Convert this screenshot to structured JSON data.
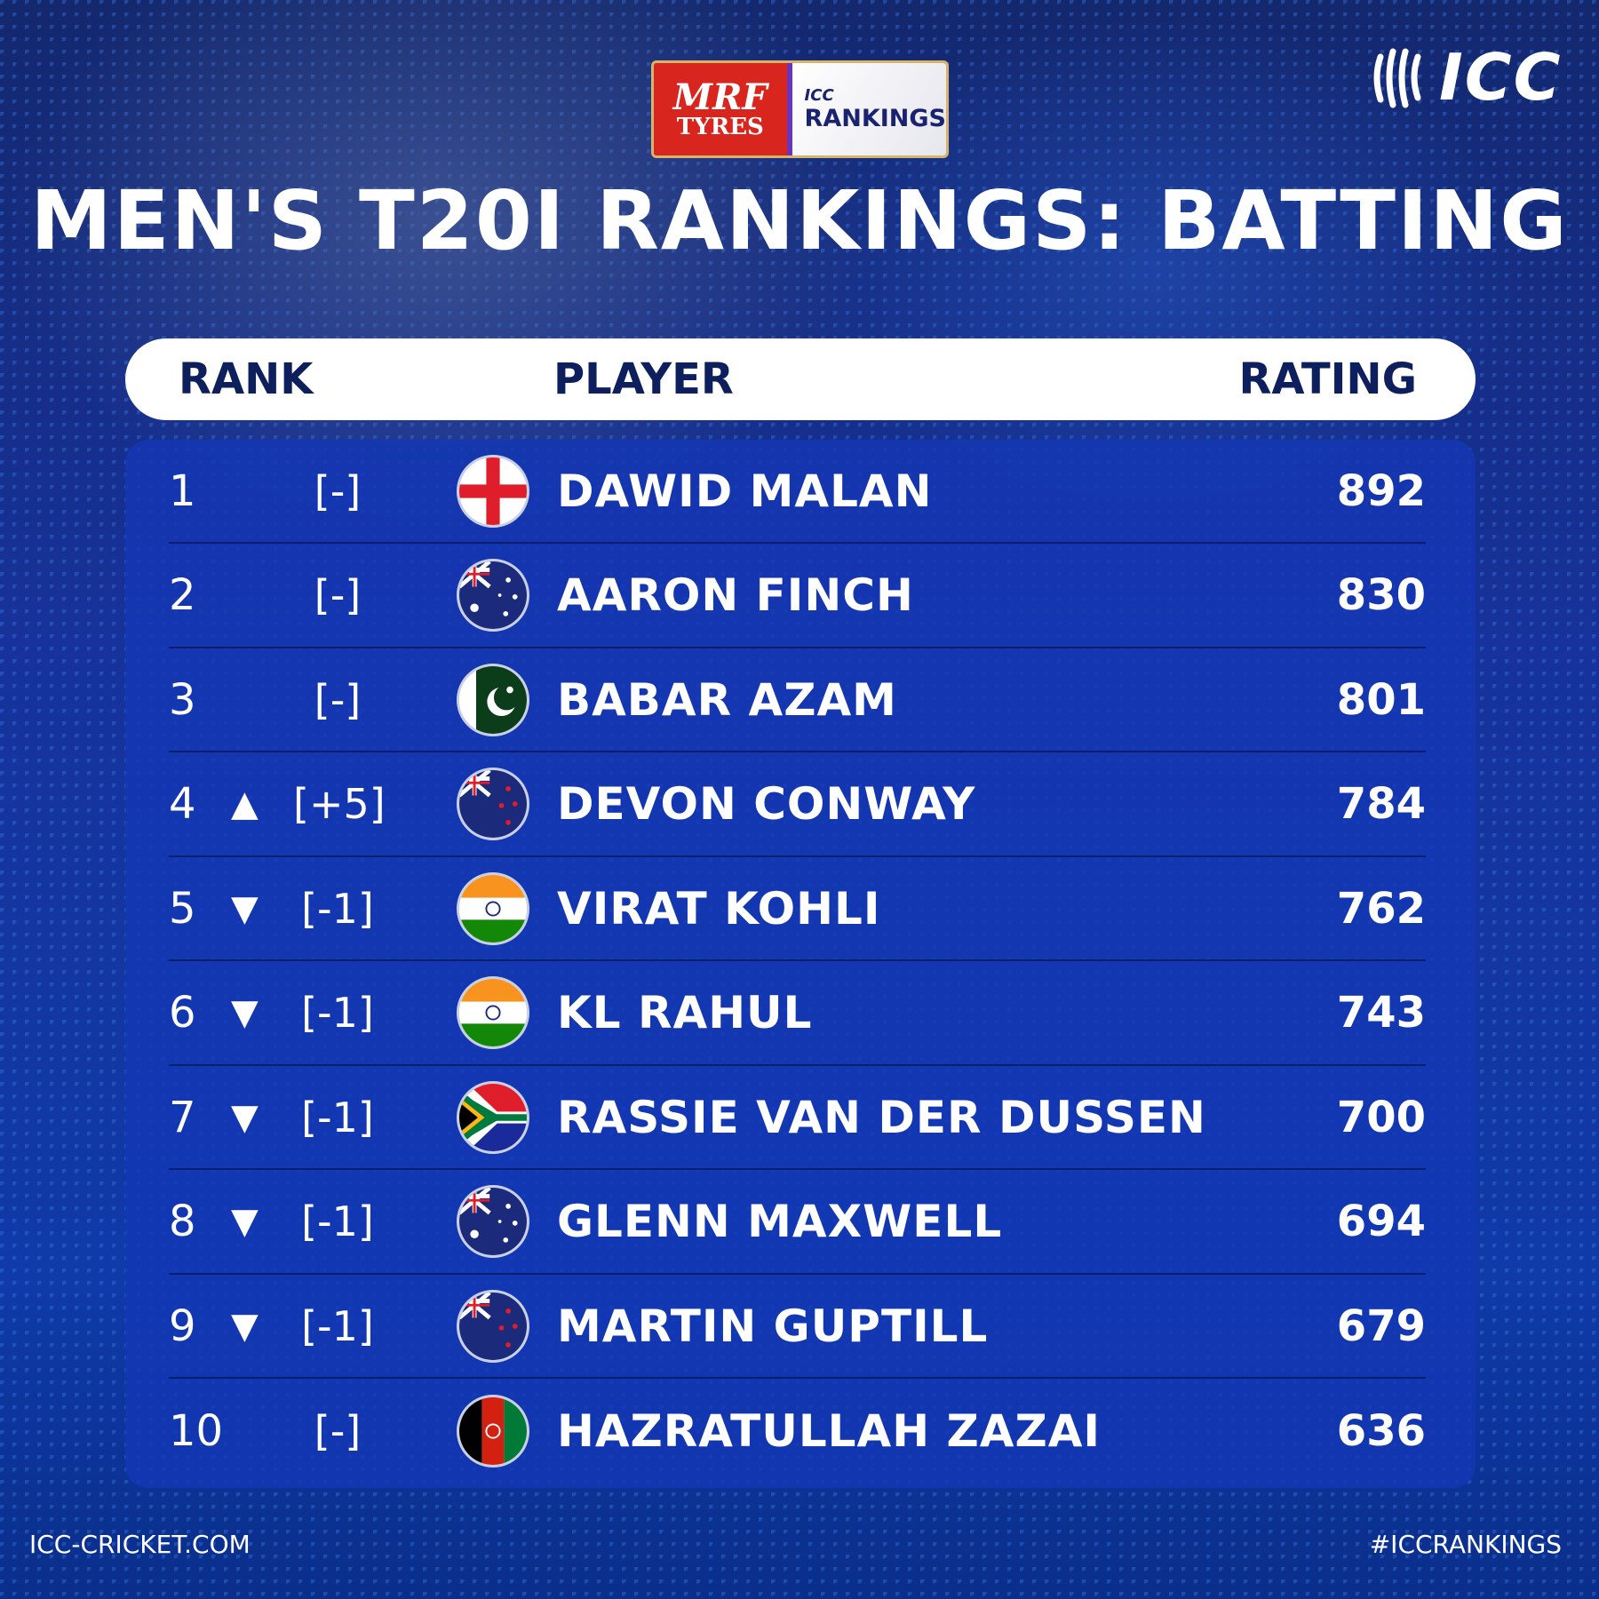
{
  "sponsor": {
    "brand_top": "MRF",
    "brand_bottom": "TYRES",
    "sub_top": "ICC",
    "sub_bottom": "RANKINGS"
  },
  "logo": {
    "text": "ICC"
  },
  "title": "MEN'S T20I RANKINGS: BATTING",
  "header": {
    "rank": "RANK",
    "player": "PLAYER",
    "rating": "RATING"
  },
  "rows": [
    {
      "rank": "1",
      "trend": "none",
      "arrow": "",
      "change": "[-]",
      "flag": "england",
      "name": "DAWID MALAN",
      "rating": "892"
    },
    {
      "rank": "2",
      "trend": "none",
      "arrow": "",
      "change": "[-]",
      "flag": "australia",
      "name": "AARON FINCH",
      "rating": "830"
    },
    {
      "rank": "3",
      "trend": "none",
      "arrow": "",
      "change": "[-]",
      "flag": "pakistan",
      "name": "BABAR AZAM",
      "rating": "801"
    },
    {
      "rank": "4",
      "trend": "up",
      "arrow": "▲",
      "change": "[+5]",
      "flag": "new-zealand",
      "name": "DEVON CONWAY",
      "rating": "784"
    },
    {
      "rank": "5",
      "trend": "down",
      "arrow": "▼",
      "change": "[-1]",
      "flag": "india",
      "name": "VIRAT KOHLI",
      "rating": "762"
    },
    {
      "rank": "6",
      "trend": "down",
      "arrow": "▼",
      "change": "[-1]",
      "flag": "india",
      "name": "KL RAHUL",
      "rating": "743"
    },
    {
      "rank": "7",
      "trend": "down",
      "arrow": "▼",
      "change": "[-1]",
      "flag": "south-africa",
      "name": "RASSIE VAN DER DUSSEN",
      "rating": "700"
    },
    {
      "rank": "8",
      "trend": "down",
      "arrow": "▼",
      "change": "[-1]",
      "flag": "australia",
      "name": "GLENN MAXWELL",
      "rating": "694"
    },
    {
      "rank": "9",
      "trend": "down",
      "arrow": "▼",
      "change": "[-1]",
      "flag": "new-zealand",
      "name": "MARTIN GUPTILL",
      "rating": "679"
    },
    {
      "rank": "10",
      "trend": "none",
      "arrow": "",
      "change": "[-]",
      "flag": "afghanistan",
      "name": "HAZRATULLAH ZAZAI",
      "rating": "636"
    }
  ],
  "footer": {
    "left": "ICC-CRICKET.COM",
    "right": "#ICCRANKINGS"
  }
}
